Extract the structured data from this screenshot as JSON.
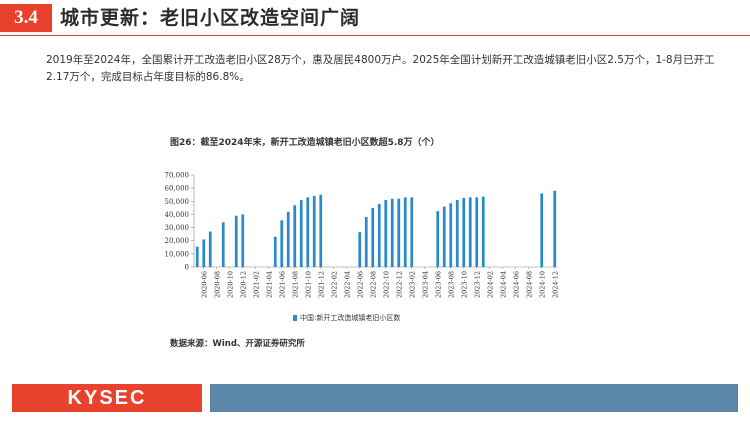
{
  "header": {
    "section_number": "3.4",
    "section_title": "城市更新：老旧小区改造空间广阔"
  },
  "intro_text": "2019年至2024年，全国累计开工改造老旧小区28万个，惠及居民4800万户。2025年全国计划新开工改造城镇老旧小区2.5万个，1-8月已开工2.17万个，完成目标占年度目标的86.8%。",
  "figure": {
    "title": "图26：截至2024年末，新开工改造城镇老旧小区数超5.8万（个）",
    "source": "数据来源：Wind、开源证券研究所"
  },
  "footer": {
    "logo_text": "KYSEC"
  },
  "colors": {
    "accent": "#e8412c",
    "bar": "#2a8ac9",
    "footer_bar": "#5a86a8"
  },
  "chart_data": {
    "type": "bar",
    "title": "图26：截至2024年末，新开工改造城镇老旧小区数超5.8万（个）",
    "ylim": [
      0,
      70000
    ],
    "yticks": [
      0,
      10000,
      20000,
      30000,
      40000,
      50000,
      60000,
      70000
    ],
    "ytick_labels": [
      "0",
      "10,000",
      "20,000",
      "30,000",
      "40,000",
      "50,000",
      "60,000",
      "70,000"
    ],
    "grid": false,
    "legend_position": "bottom",
    "x_tick_labels": [
      "2020-06",
      "2020-08",
      "2020-10",
      "2020-12",
      "2021-02",
      "2021-04",
      "2021-06",
      "2021-08",
      "2021-10",
      "2021-12",
      "2022-02",
      "2022-04",
      "2022-06",
      "2022-08",
      "2022-10",
      "2022-12",
      "2023-02",
      "2023-04",
      "2023-06",
      "2023-08",
      "2023-10",
      "2023-12",
      "2024-02",
      "2024-04",
      "2024-06",
      "2024-08",
      "2024-10",
      "2024-12"
    ],
    "categories": [
      "2020-05",
      "2020-06",
      "2020-07",
      "2020-08",
      "2020-09",
      "2020-10",
      "2020-11",
      "2020-12",
      "2021-01",
      "2021-02",
      "2021-03",
      "2021-04",
      "2021-05",
      "2021-06",
      "2021-07",
      "2021-08",
      "2021-09",
      "2021-10",
      "2021-11",
      "2021-12",
      "2022-01",
      "2022-02",
      "2022-03",
      "2022-04",
      "2022-05",
      "2022-06",
      "2022-07",
      "2022-08",
      "2022-09",
      "2022-10",
      "2022-11",
      "2022-12",
      "2023-01",
      "2023-02",
      "2023-03",
      "2023-04",
      "2023-05",
      "2023-06",
      "2023-07",
      "2023-08",
      "2023-09",
      "2023-10",
      "2023-11",
      "2023-12",
      "2024-01",
      "2024-02",
      "2024-03",
      "2024-04",
      "2024-05",
      "2024-06",
      "2024-07",
      "2024-08",
      "2024-09",
      "2024-10",
      "2024-11",
      "2024-12"
    ],
    "series": [
      {
        "name": "中国:新开工改造城镇老旧小区数",
        "values": [
          15500,
          21000,
          27000,
          null,
          34000,
          null,
          39000,
          40000,
          null,
          null,
          null,
          null,
          23000,
          35500,
          42000,
          47000,
          51000,
          53000,
          54000,
          55000,
          null,
          null,
          null,
          null,
          null,
          26500,
          38000,
          45000,
          48000,
          51000,
          52000,
          52000,
          53000,
          53000,
          null,
          null,
          null,
          42500,
          46000,
          48500,
          51000,
          52500,
          53000,
          53000,
          53500,
          null,
          null,
          null,
          null,
          null,
          null,
          null,
          null,
          56000,
          null,
          58000
        ]
      }
    ]
  }
}
